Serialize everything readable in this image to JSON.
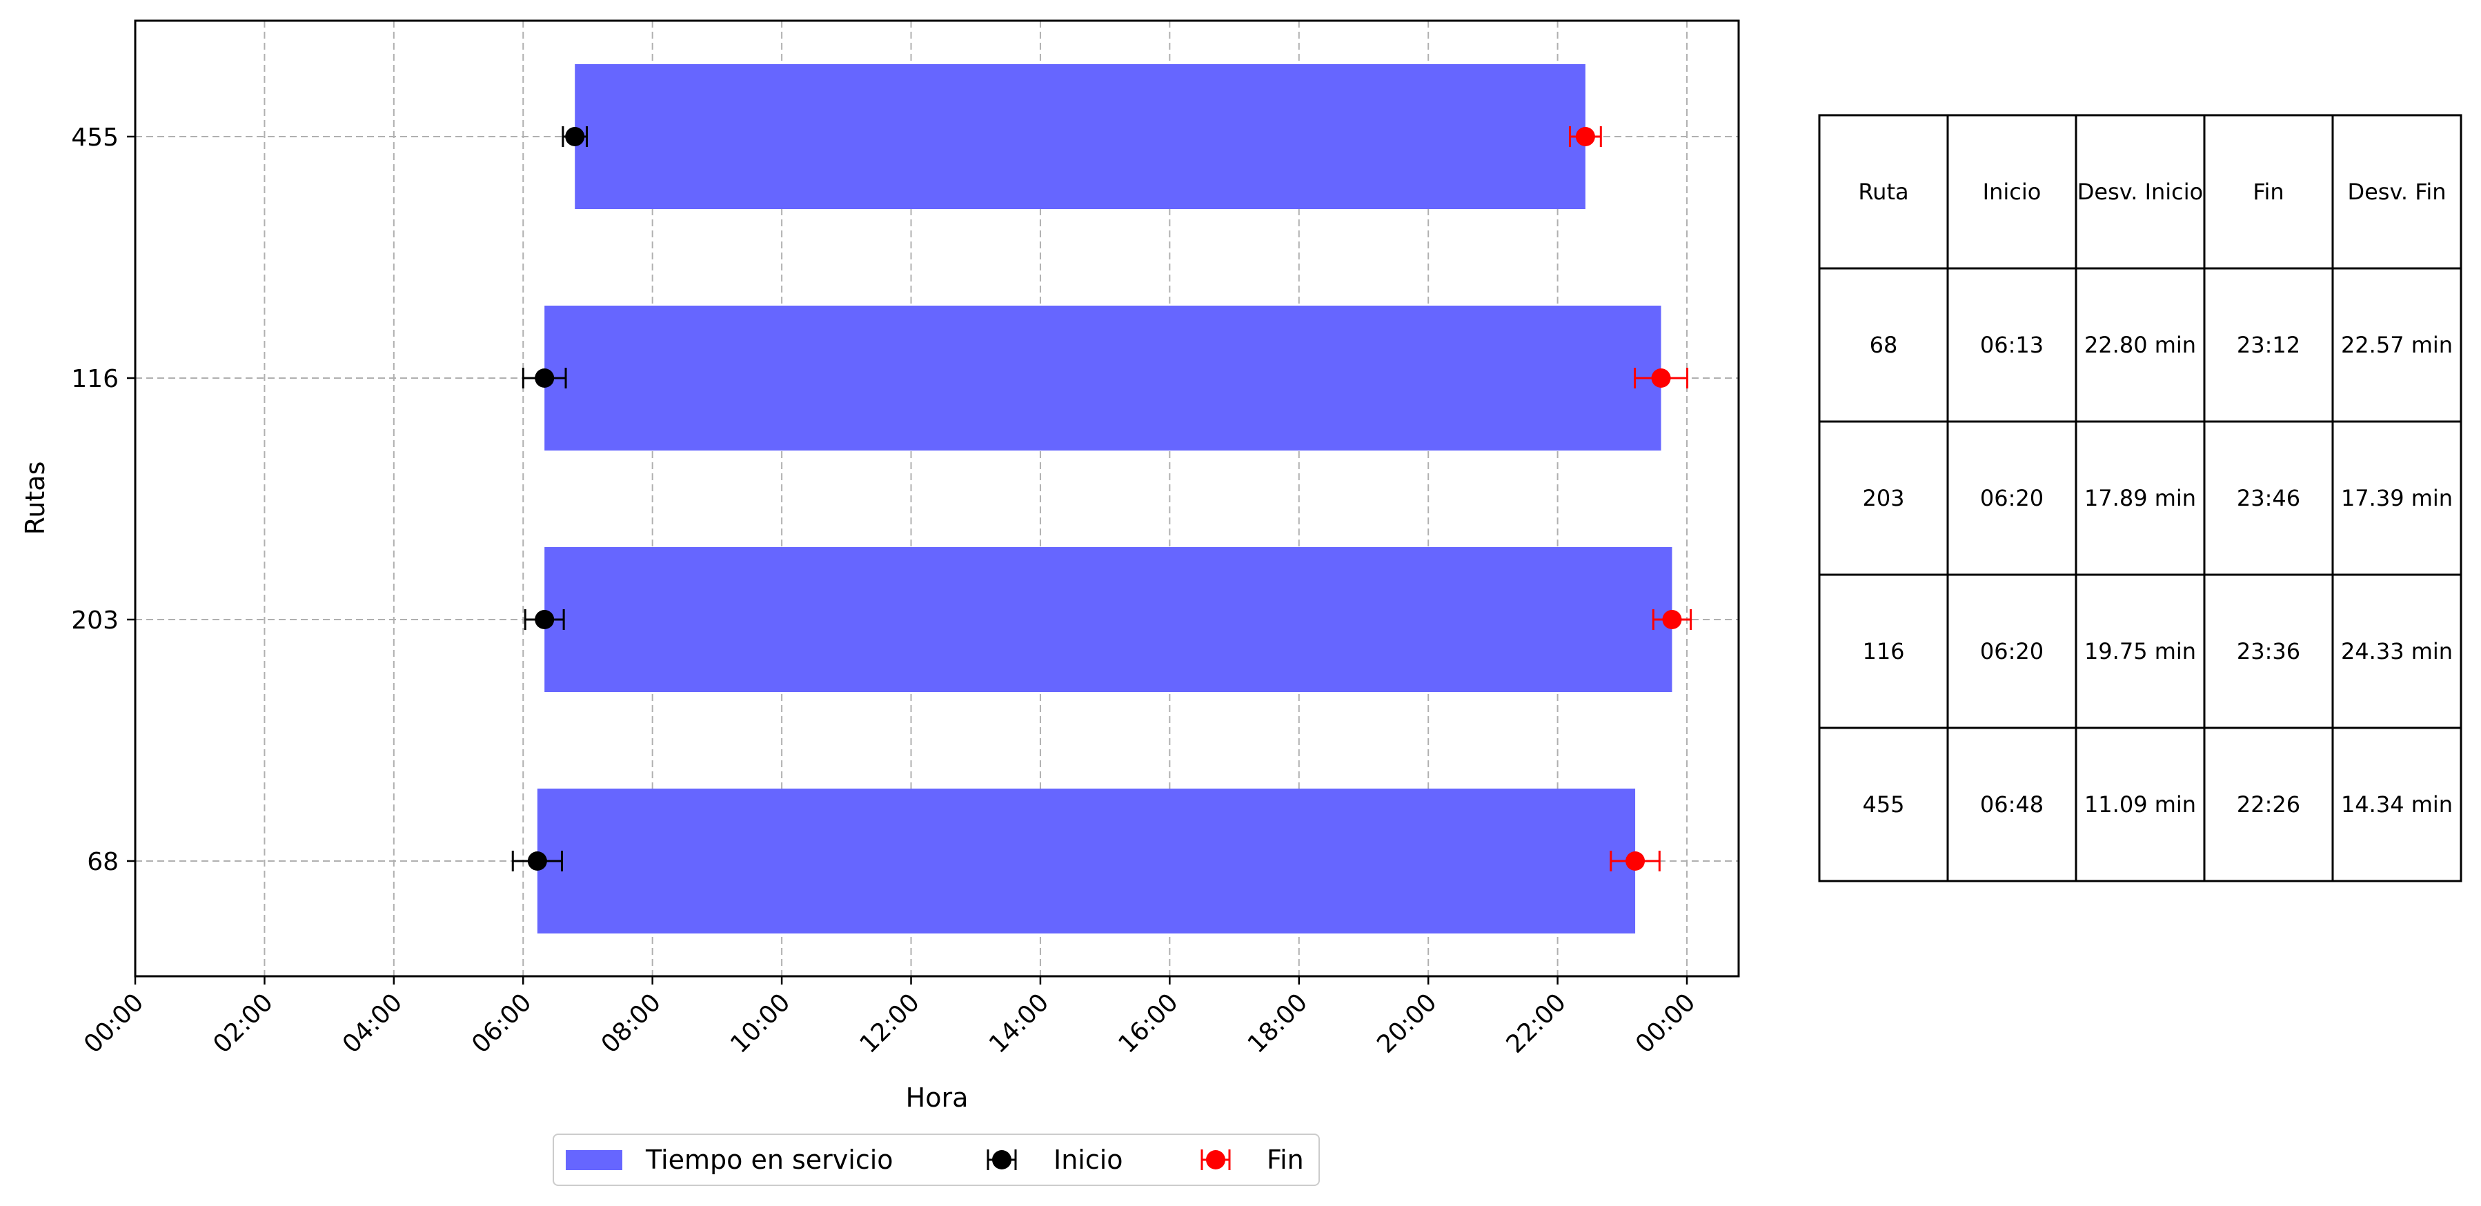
{
  "colors": {
    "bar": "#6666ff",
    "start_marker": "#000000",
    "end_marker": "#ff0000",
    "grid": "#b0b0b0"
  },
  "chart_data": {
    "type": "bar",
    "orientation": "horizontal",
    "title": "",
    "xlabel": "Hora",
    "ylabel": "Rutas",
    "x_unit": "hours",
    "xlim": [
      0,
      24.8
    ],
    "x_ticks": [
      0,
      2,
      4,
      6,
      8,
      10,
      12,
      14,
      16,
      18,
      20,
      22,
      24
    ],
    "x_tick_labels": [
      "00:00",
      "02:00",
      "04:00",
      "06:00",
      "08:00",
      "10:00",
      "12:00",
      "14:00",
      "16:00",
      "18:00",
      "20:00",
      "22:00",
      "00:00"
    ],
    "categories": [
      "68",
      "203",
      "116",
      "455"
    ],
    "grid": true,
    "legend_placement": "bottom-center",
    "legend": [
      "Tiempo en servicio",
      "Inicio",
      "Fin"
    ],
    "series": [
      {
        "name": "Tiempo en servicio",
        "kind": "bar",
        "start": [
          6.22,
          6.33,
          6.33,
          6.8
        ],
        "end": [
          23.2,
          23.77,
          23.6,
          22.43
        ]
      },
      {
        "name": "Inicio",
        "kind": "errorbar",
        "values": [
          6.22,
          6.33,
          6.33,
          6.8
        ],
        "error_min": [
          22.8,
          17.89,
          19.75,
          11.09
        ]
      },
      {
        "name": "Fin",
        "kind": "errorbar",
        "values": [
          23.2,
          23.77,
          23.6,
          22.43
        ],
        "error_min": [
          22.57,
          17.39,
          24.33,
          14.34
        ]
      }
    ],
    "table": {
      "columns": [
        "Ruta",
        "Inicio",
        "Desv. Inicio",
        "Fin",
        "Desv. Fin"
      ],
      "rows": [
        [
          "68",
          "06:13",
          "22.80 min",
          "23:12",
          "22.57 min"
        ],
        [
          "203",
          "06:20",
          "17.89 min",
          "23:46",
          "17.39 min"
        ],
        [
          "116",
          "06:20",
          "19.75 min",
          "23:36",
          "24.33 min"
        ],
        [
          "455",
          "06:48",
          "11.09 min",
          "22:26",
          "14.34 min"
        ]
      ]
    }
  }
}
